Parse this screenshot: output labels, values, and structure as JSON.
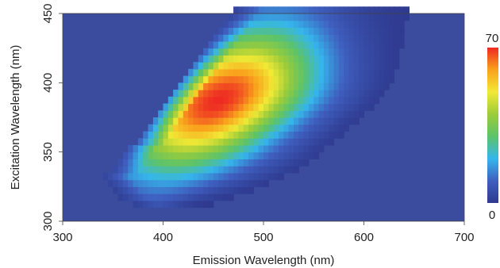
{
  "chart_data": {
    "type": "heatmap",
    "xlabel": "Emission Wavelength (nm)",
    "ylabel": "Excitation Wavelength (nm)",
    "xlim": [
      300,
      700
    ],
    "ylim": [
      300,
      450
    ],
    "xticks": [
      300,
      400,
      500,
      600,
      700
    ],
    "yticks": [
      300,
      350,
      400,
      450
    ],
    "colorbar": {
      "min": 0,
      "max": 70,
      "labels": [
        "70",
        "0"
      ]
    },
    "colors": {
      "background": "#3b4c9e",
      "scale": [
        "#2f3a8f",
        "#3f5fbf",
        "#35b6ec",
        "#5cc36a",
        "#9ccc3a",
        "#f2e935",
        "#f9a21c",
        "#ee2a23"
      ]
    },
    "peak": {
      "emission": 455,
      "excitation": 385,
      "intensity": 70
    },
    "rows_excitation": [
      300,
      305,
      310,
      315,
      320,
      325,
      330,
      335,
      340,
      345,
      350,
      355,
      360,
      365,
      370,
      375,
      380,
      385,
      390,
      395,
      400,
      405,
      410,
      415,
      420,
      425,
      430,
      435,
      440,
      445,
      450
    ],
    "region_emission_start": [
      300,
      300,
      370,
      355,
      350,
      345,
      340,
      350,
      355,
      360,
      365,
      375,
      380,
      385,
      390,
      395,
      400,
      405,
      410,
      415,
      420,
      425,
      430,
      435,
      440,
      445,
      450,
      455,
      460,
      465,
      470
    ],
    "region_emission_end": [
      700,
      700,
      450,
      470,
      490,
      505,
      520,
      535,
      545,
      555,
      560,
      570,
      578,
      585,
      592,
      600,
      608,
      615,
      620,
      625,
      628,
      630,
      632,
      634,
      635,
      636,
      637,
      638,
      640,
      642,
      644
    ]
  }
}
